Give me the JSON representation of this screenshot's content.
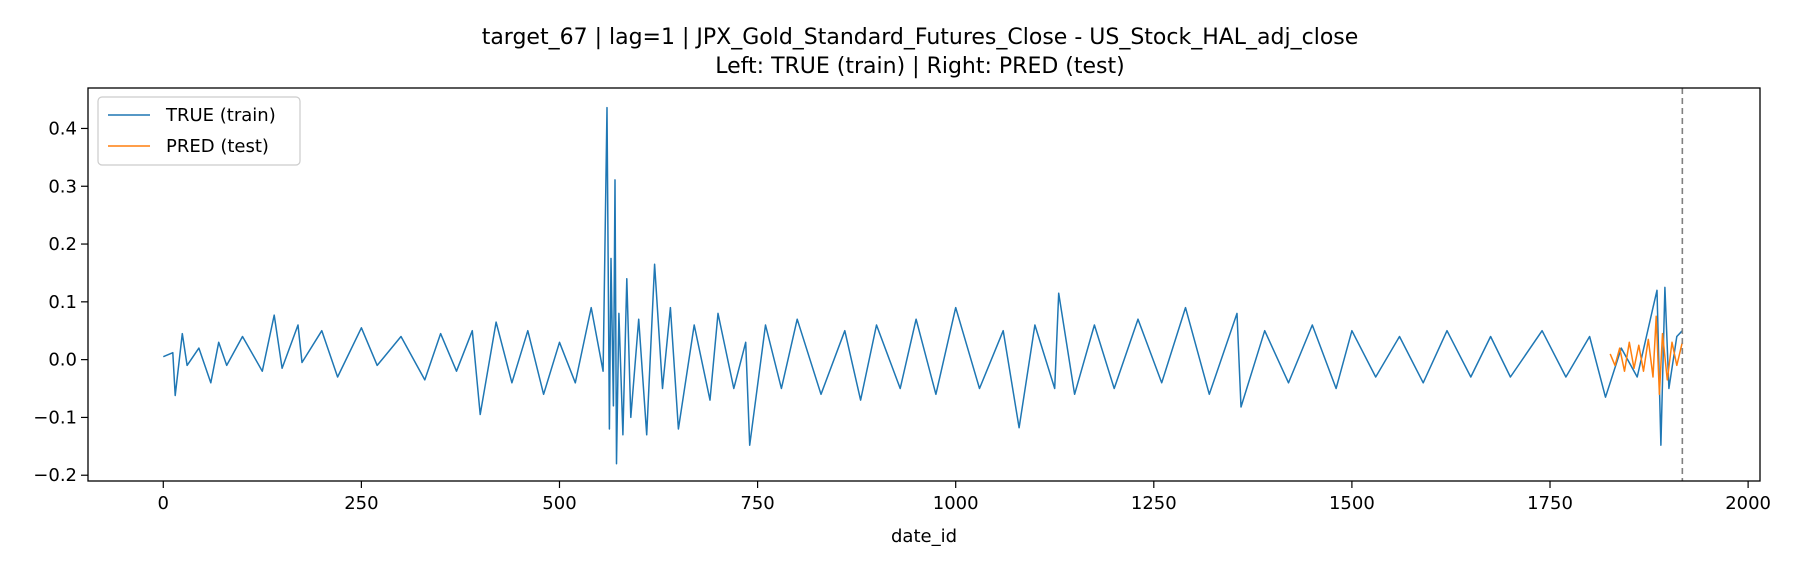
{
  "chart_data": {
    "type": "line",
    "title_line1": "target_67 | lag=1 | JPX_Gold_Standard_Futures_Close - US_Stock_HAL_adj_close",
    "title_line2": "Left: TRUE (train) | Right: PRED (test)",
    "xlabel": "date_id",
    "ylabel": "",
    "xlim": [
      -95,
      2015
    ],
    "ylim": [
      -0.21,
      0.47
    ],
    "xticks": [
      0,
      250,
      500,
      750,
      1000,
      1250,
      1500,
      1750,
      2000
    ],
    "xtick_labels": [
      "0",
      "250",
      "500",
      "750",
      "1000",
      "1250",
      "1500",
      "1750",
      "2000"
    ],
    "yticks": [
      -0.2,
      -0.1,
      0.0,
      0.1,
      0.2,
      0.3,
      0.4
    ],
    "ytick_labels": [
      "−0.2",
      "−0.1",
      "0.0",
      "0.1",
      "0.2",
      "0.3",
      "0.4"
    ],
    "split_line_x": 1917,
    "legend_position": "upper-left",
    "grid": false,
    "colors": {
      "train": "#1f77b4",
      "test": "#ff7f0e",
      "split": "#808080"
    },
    "series": [
      {
        "name": "TRUE (train)",
        "x": [
          0,
          12,
          15,
          24,
          30,
          45,
          60,
          70,
          80,
          100,
          125,
          140,
          150,
          170,
          175,
          200,
          220,
          250,
          270,
          300,
          330,
          350,
          370,
          390,
          400,
          420,
          440,
          460,
          480,
          500,
          520,
          540,
          555,
          560,
          563,
          565,
          568,
          570,
          572,
          575,
          580,
          585,
          590,
          600,
          610,
          620,
          630,
          640,
          650,
          670,
          690,
          700,
          720,
          735,
          740,
          760,
          780,
          800,
          830,
          860,
          880,
          900,
          930,
          950,
          975,
          1000,
          1030,
          1060,
          1080,
          1100,
          1125,
          1130,
          1150,
          1175,
          1200,
          1230,
          1260,
          1290,
          1320,
          1355,
          1360,
          1390,
          1420,
          1450,
          1480,
          1500,
          1530,
          1560,
          1590,
          1620,
          1650,
          1675,
          1700,
          1740,
          1770,
          1800,
          1820,
          1840,
          1860,
          1880,
          1885,
          1890,
          1895,
          1900,
          1910,
          1917
        ],
        "values": [
          0.005,
          0.012,
          -0.062,
          0.045,
          -0.01,
          0.02,
          -0.04,
          0.03,
          -0.01,
          0.04,
          -0.02,
          0.077,
          -0.015,
          0.06,
          -0.005,
          0.05,
          -0.03,
          0.055,
          -0.01,
          0.04,
          -0.035,
          0.045,
          -0.02,
          0.05,
          -0.095,
          0.065,
          -0.04,
          0.05,
          -0.06,
          0.03,
          -0.04,
          0.09,
          -0.02,
          0.436,
          -0.12,
          0.175,
          -0.08,
          0.311,
          -0.18,
          0.08,
          -0.13,
          0.14,
          -0.1,
          0.07,
          -0.13,
          0.165,
          -0.05,
          0.09,
          -0.12,
          0.06,
          -0.07,
          0.08,
          -0.05,
          0.03,
          -0.148,
          0.06,
          -0.05,
          0.07,
          -0.06,
          0.05,
          -0.07,
          0.06,
          -0.05,
          0.07,
          -0.06,
          0.09,
          -0.05,
          0.05,
          -0.118,
          0.06,
          -0.05,
          0.115,
          -0.06,
          0.06,
          -0.05,
          0.07,
          -0.04,
          0.09,
          -0.06,
          0.08,
          -0.082,
          0.05,
          -0.04,
          0.06,
          -0.05,
          0.05,
          -0.03,
          0.04,
          -0.04,
          0.05,
          -0.03,
          0.04,
          -0.03,
          0.05,
          -0.03,
          0.04,
          -0.065,
          0.02,
          -0.03,
          0.09,
          0.12,
          -0.148,
          0.125,
          -0.05,
          0.04,
          0.05
        ]
      },
      {
        "name": "PRED (test)",
        "x": [
          1826,
          1832,
          1838,
          1844,
          1850,
          1856,
          1862,
          1868,
          1874,
          1880,
          1884,
          1888,
          1892,
          1898,
          1904,
          1910,
          1917
        ],
        "values": [
          0.01,
          -0.01,
          0.02,
          -0.02,
          0.03,
          -0.015,
          0.025,
          -0.02,
          0.035,
          -0.03,
          0.075,
          -0.06,
          0.045,
          -0.035,
          0.03,
          -0.01,
          0.03
        ]
      }
    ]
  }
}
